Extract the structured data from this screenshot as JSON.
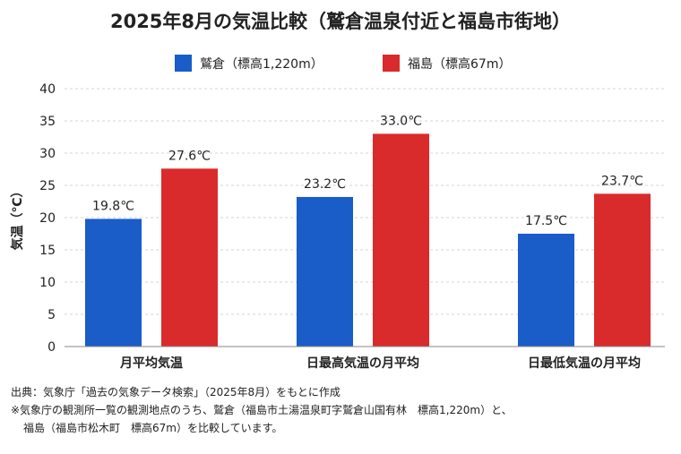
{
  "chart_data": {
    "type": "bar",
    "title": "2025年8月の気温比較（鷲倉温泉付近と福島市街地）",
    "ylabel": "気温（℃）",
    "xlabel": "",
    "ylim": [
      0,
      40
    ],
    "yticks": [
      0,
      5,
      10,
      15,
      20,
      25,
      30,
      35,
      40
    ],
    "grid": true,
    "legend_position": "top",
    "categories": [
      "月平均気温",
      "日最高気温の月平均",
      "日最低気温の月平均"
    ],
    "series": [
      {
        "name": "鷲倉（標高1,220m）",
        "color": "#1a5cc8",
        "values": [
          19.8,
          23.2,
          17.5
        ],
        "labels": [
          "19.8℃",
          "23.2℃",
          "17.5℃"
        ]
      },
      {
        "name": "福島（標高67m）",
        "color": "#d92b2b",
        "values": [
          27.6,
          33.0,
          23.7
        ],
        "labels": [
          "27.6℃",
          "33.0℃",
          "23.7℃"
        ]
      }
    ]
  },
  "notes": {
    "source": "出典：気象庁「過去の気象データ検索」（2025年8月）をもとに作成",
    "remark_line1": "※気象庁の観測所一覧の観測地点のうち、鷲倉（福島市土湯温泉町字鷲倉山国有林　標高1,220m）と、",
    "remark_line2": "福島（福島市松木町　標高67m）を比較しています。"
  }
}
